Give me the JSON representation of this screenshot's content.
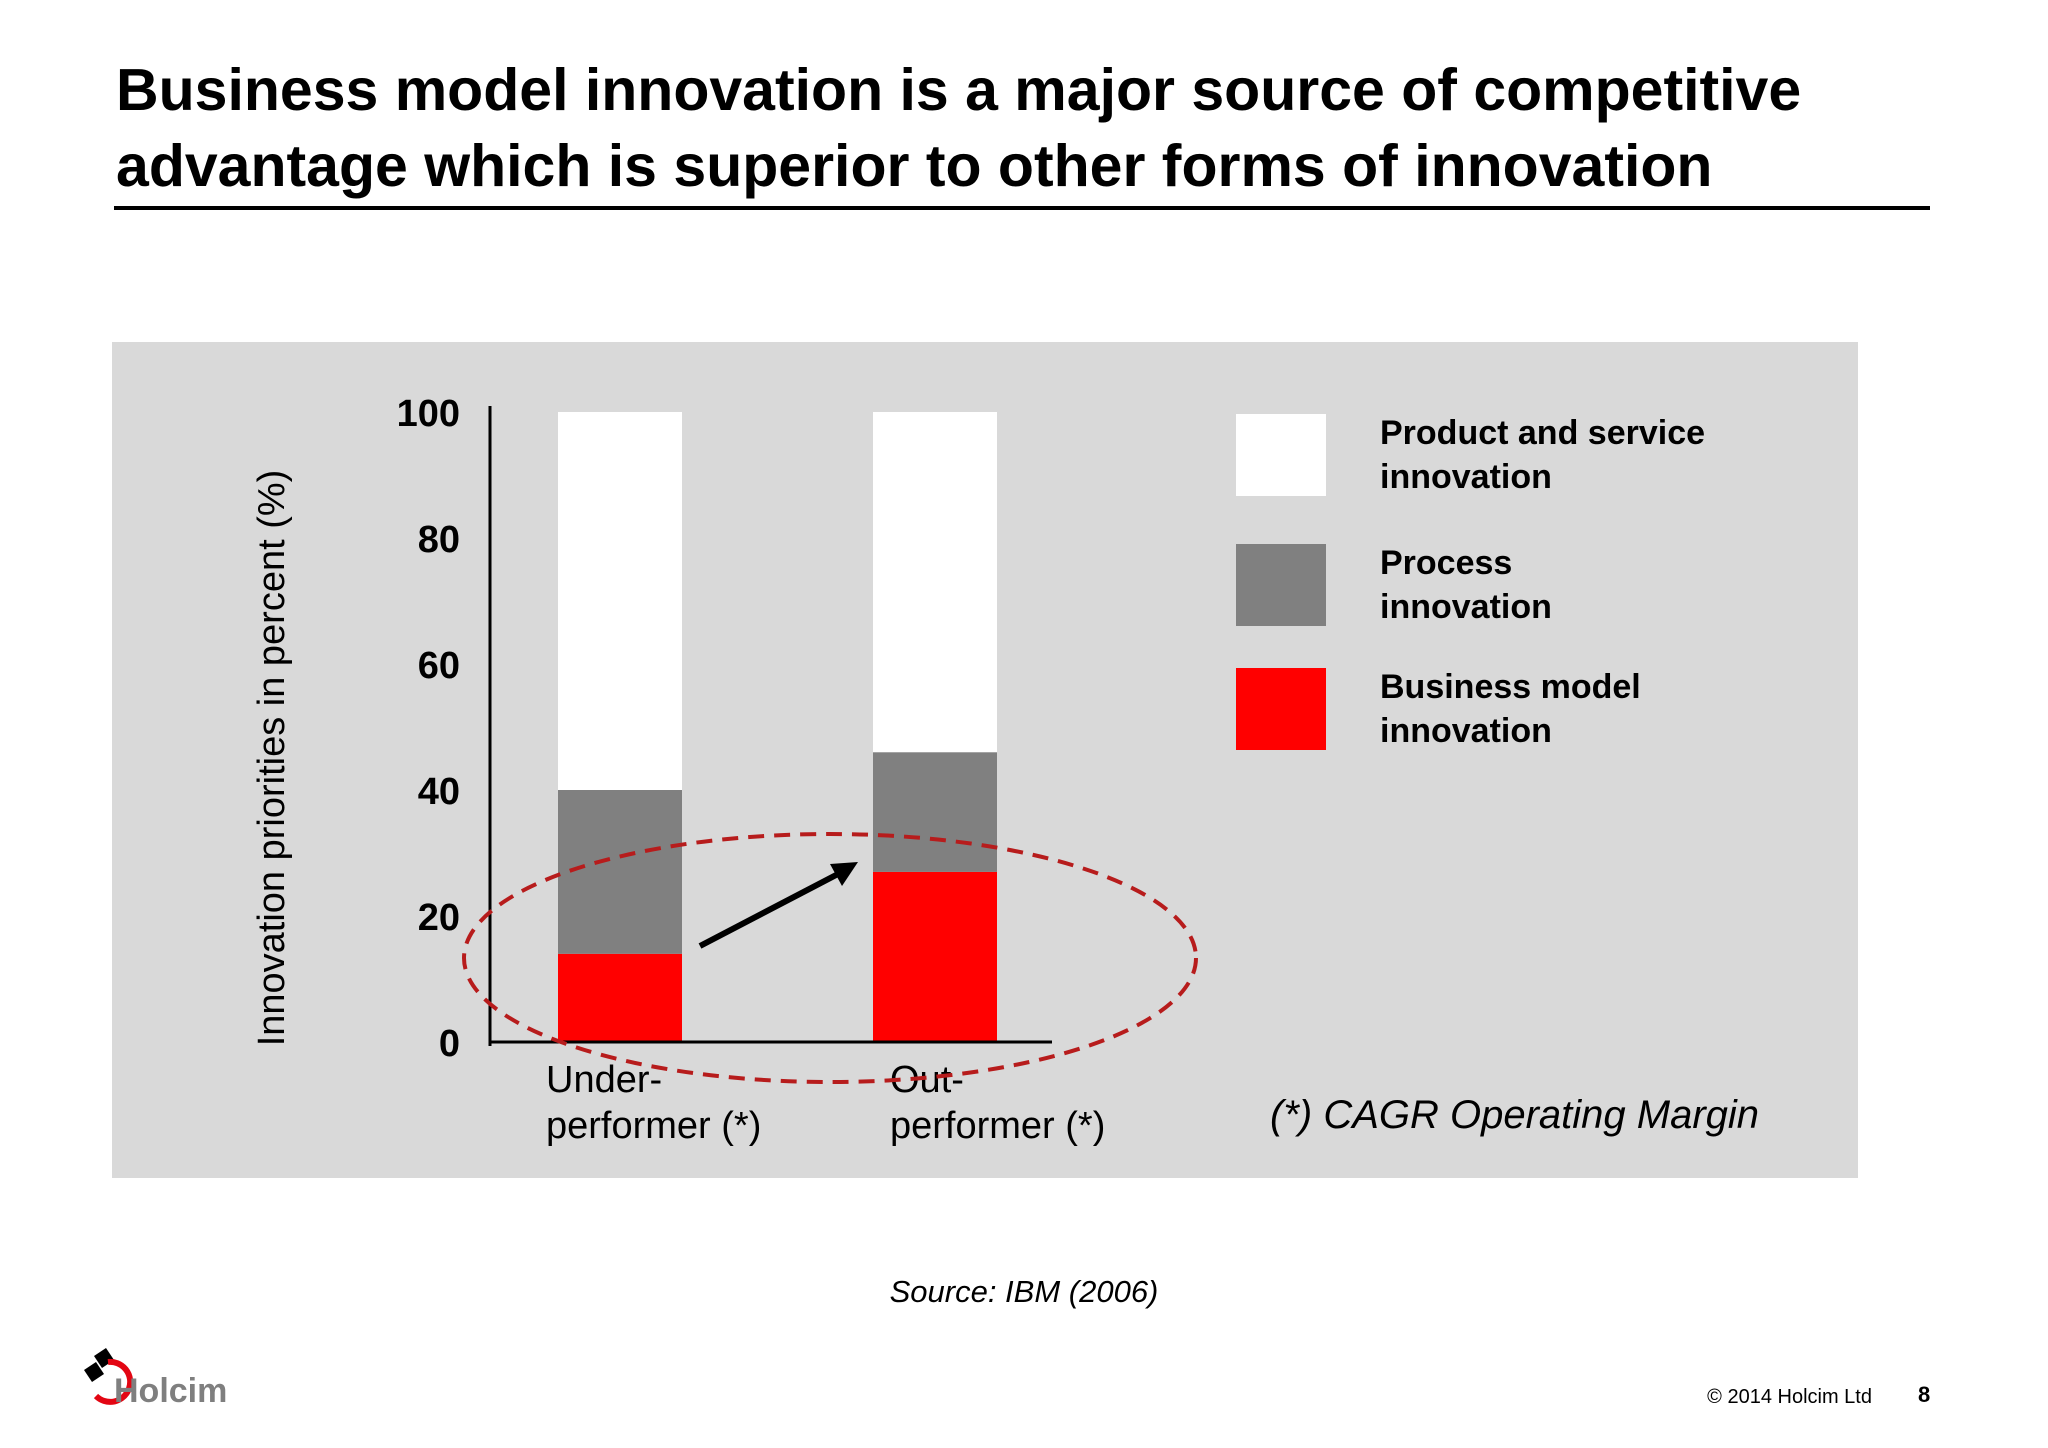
{
  "slide": {
    "title": "Business model innovation is a major source of competitive advantage which is superior to other forms of innovation",
    "source": "Source: IBM (2006)",
    "logo_text": "Holcim",
    "copyright": "© 2014 Holcim Ltd",
    "page_number": "8"
  },
  "chart_data": {
    "type": "bar",
    "stacked": true,
    "title": "",
    "ylabel": "Innovation priorities in percent  (%)",
    "ylim": [
      0,
      100
    ],
    "yticks": [
      0,
      20,
      40,
      60,
      80,
      100
    ],
    "categories": [
      "Under-performer  (*)",
      "Out-performer (*)"
    ],
    "series": [
      {
        "name": "Business model innovation",
        "color": "#ff0000",
        "values": [
          14,
          27
        ]
      },
      {
        "name": "Process innovation",
        "color": "#808080",
        "values": [
          26,
          19
        ]
      },
      {
        "name": "Product and service innovation",
        "color": "#ffffff",
        "values": [
          60,
          54
        ]
      }
    ],
    "legend": {
      "position": "right",
      "order": [
        "Product and service innovation",
        "Process innovation",
        "Business model innovation"
      ]
    },
    "annotations": {
      "footnote": "(*) CAGR Operating Margin",
      "highlight": "dashed ellipse around business model innovation bars with upward arrow"
    },
    "grid": false
  },
  "colors": {
    "panel": "#d9d9d9",
    "highlight_ellipse": "#b71c1c"
  }
}
